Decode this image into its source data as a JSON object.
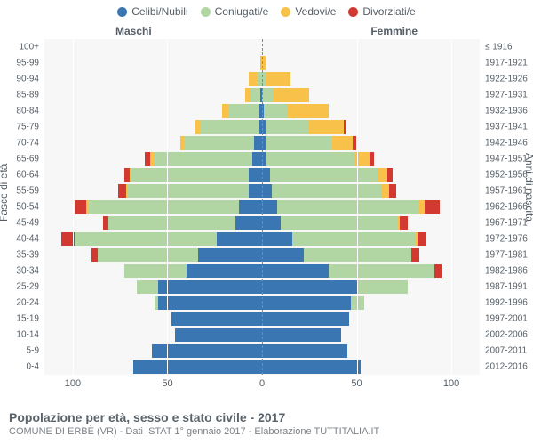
{
  "legend": [
    {
      "label": "Celibi/Nubili",
      "color": "#3a77b2"
    },
    {
      "label": "Coniugati/e",
      "color": "#b1d6a4"
    },
    {
      "label": "Vedovi/e",
      "color": "#f7c14a"
    },
    {
      "label": "Divorziati/e",
      "color": "#d23931"
    }
  ],
  "side_labels": {
    "left": "Maschi",
    "right": "Femmine"
  },
  "yaxis_left_title": "Fasce di età",
  "yaxis_right_title": "Anni di nascita",
  "x_axis": {
    "max": 115,
    "ticks": [
      100,
      50,
      0,
      50,
      100
    ]
  },
  "footer": {
    "title": "Popolazione per età, sesso e stato civile - 2017",
    "subtitle": "COMUNE DI ERBÈ (VR) - Dati ISTAT 1° gennaio 2017 - Elaborazione TUTTITALIA.IT"
  },
  "colors": {
    "plot_bg": "#f7f7f7",
    "grid": "#ffffff",
    "centerline": "#888888",
    "text": "#555e66"
  },
  "rows": [
    {
      "age": "100+",
      "birth": "≤ 1916",
      "m": [
        0,
        0,
        0,
        0
      ],
      "f": [
        0,
        0,
        0,
        0
      ]
    },
    {
      "age": "95-99",
      "birth": "1917-1921",
      "m": [
        0,
        0,
        1,
        0
      ],
      "f": [
        0,
        0,
        2,
        0
      ]
    },
    {
      "age": "90-94",
      "birth": "1922-1926",
      "m": [
        0,
        3,
        4,
        0
      ],
      "f": [
        0,
        2,
        13,
        0
      ]
    },
    {
      "age": "85-89",
      "birth": "1927-1931",
      "m": [
        1,
        5,
        3,
        0
      ],
      "f": [
        0,
        6,
        19,
        0
      ]
    },
    {
      "age": "80-84",
      "birth": "1932-1936",
      "m": [
        2,
        16,
        3,
        0
      ],
      "f": [
        1,
        12,
        22,
        0
      ]
    },
    {
      "age": "75-79",
      "birth": "1937-1941",
      "m": [
        2,
        31,
        2,
        0
      ],
      "f": [
        2,
        23,
        18,
        1
      ]
    },
    {
      "age": "70-74",
      "birth": "1942-1946",
      "m": [
        4,
        37,
        2,
        0
      ],
      "f": [
        2,
        35,
        11,
        2
      ]
    },
    {
      "age": "65-69",
      "birth": "1947-1951",
      "m": [
        5,
        52,
        2,
        3
      ],
      "f": [
        2,
        47,
        8,
        2
      ]
    },
    {
      "age": "60-64",
      "birth": "1952-1956",
      "m": [
        7,
        62,
        1,
        3
      ],
      "f": [
        4,
        57,
        5,
        3
      ]
    },
    {
      "age": "55-59",
      "birth": "1957-1961",
      "m": [
        7,
        64,
        1,
        4
      ],
      "f": [
        5,
        58,
        4,
        4
      ]
    },
    {
      "age": "50-54",
      "birth": "1962-1966",
      "m": [
        12,
        80,
        1,
        6
      ],
      "f": [
        8,
        75,
        3,
        8
      ]
    },
    {
      "age": "45-49",
      "birth": "1967-1971",
      "m": [
        14,
        67,
        0,
        3
      ],
      "f": [
        10,
        62,
        1,
        4
      ]
    },
    {
      "age": "40-44",
      "birth": "1972-1976",
      "m": [
        24,
        75,
        0,
        7
      ],
      "f": [
        16,
        65,
        1,
        5
      ]
    },
    {
      "age": "35-39",
      "birth": "1977-1981",
      "m": [
        34,
        53,
        0,
        3
      ],
      "f": [
        22,
        57,
        0,
        4
      ]
    },
    {
      "age": "30-34",
      "birth": "1982-1986",
      "m": [
        40,
        33,
        0,
        0
      ],
      "f": [
        35,
        56,
        0,
        4
      ]
    },
    {
      "age": "25-29",
      "birth": "1987-1991",
      "m": [
        55,
        11,
        0,
        0
      ],
      "f": [
        50,
        27,
        0,
        0
      ]
    },
    {
      "age": "20-24",
      "birth": "1992-1996",
      "m": [
        55,
        2,
        0,
        0
      ],
      "f": [
        47,
        7,
        0,
        0
      ]
    },
    {
      "age": "15-19",
      "birth": "1997-2001",
      "m": [
        48,
        0,
        0,
        0
      ],
      "f": [
        46,
        0,
        0,
        0
      ]
    },
    {
      "age": "10-14",
      "birth": "2002-2006",
      "m": [
        46,
        0,
        0,
        0
      ],
      "f": [
        42,
        0,
        0,
        0
      ]
    },
    {
      "age": "5-9",
      "birth": "2007-2011",
      "m": [
        58,
        0,
        0,
        0
      ],
      "f": [
        45,
        0,
        0,
        0
      ]
    },
    {
      "age": "0-4",
      "birth": "2012-2016",
      "m": [
        68,
        0,
        0,
        0
      ],
      "f": [
        52,
        0,
        0,
        0
      ]
    }
  ]
}
